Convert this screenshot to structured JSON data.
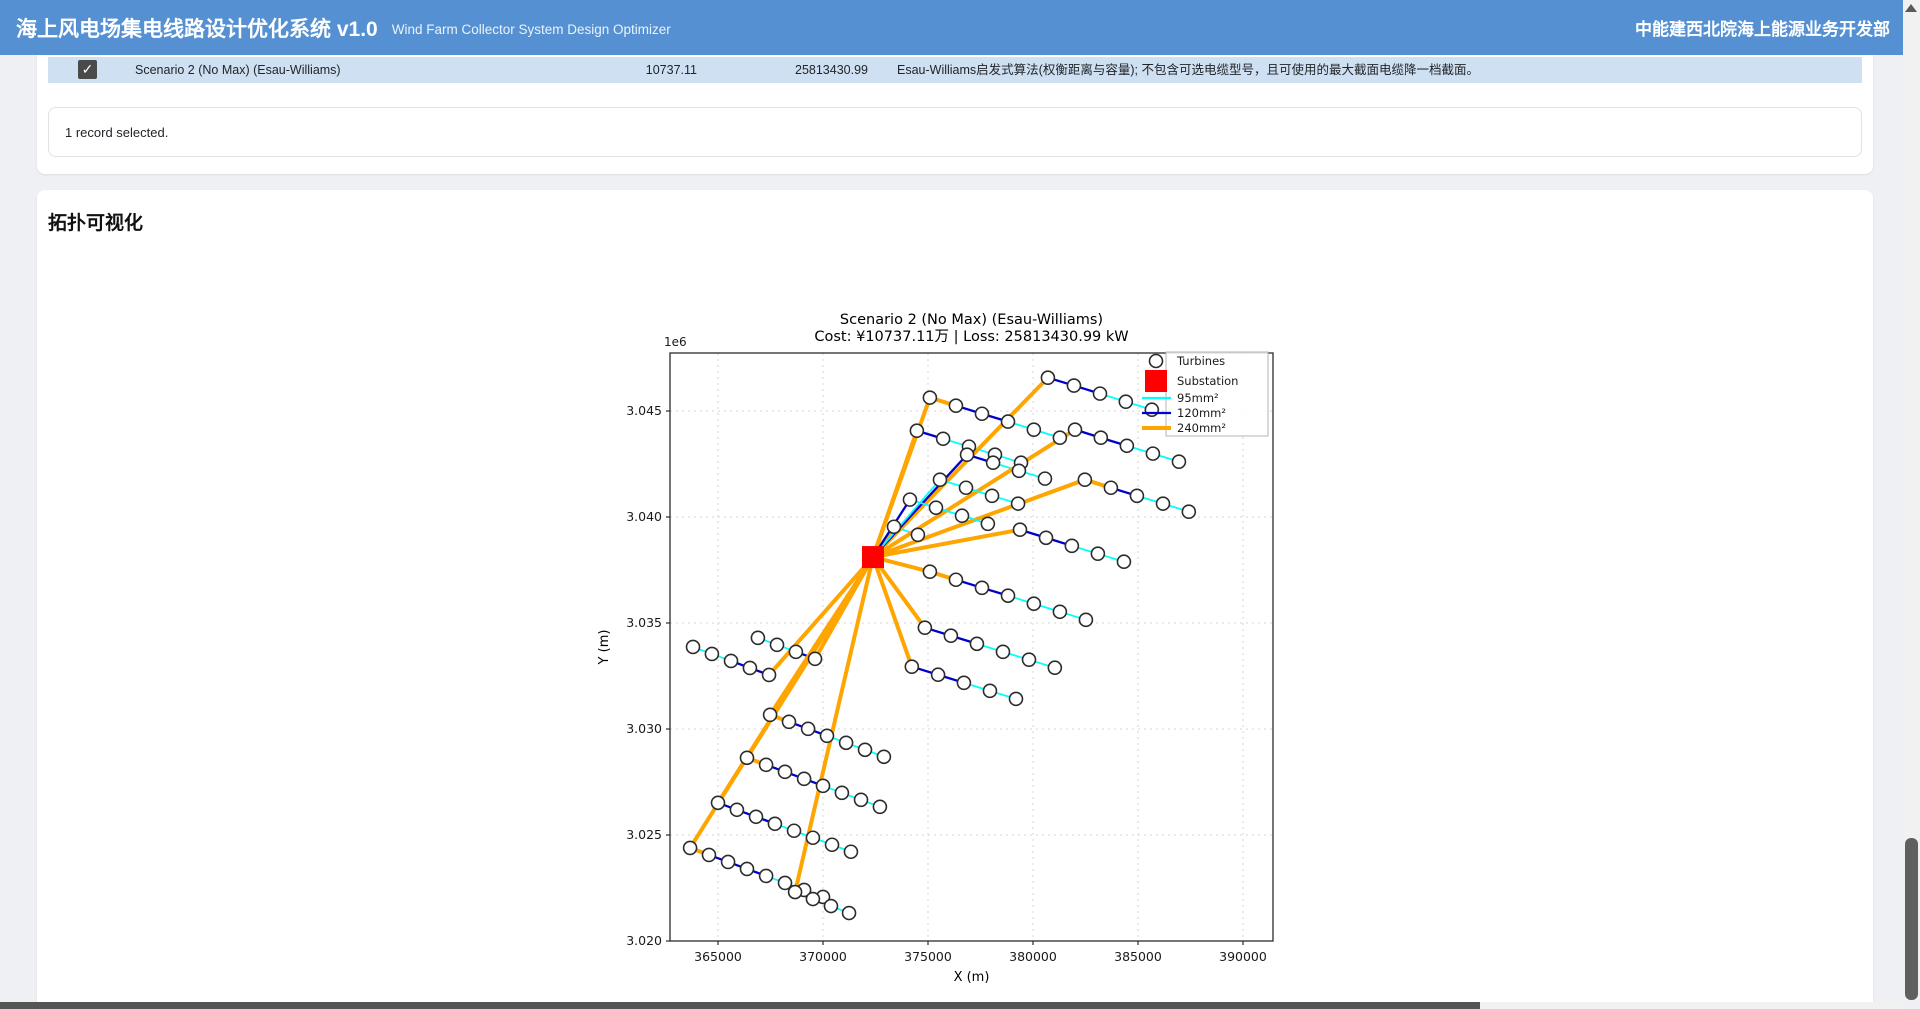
{
  "header": {
    "title": "海上风电场集电线路设计优化系统 v1.0",
    "subtitle": "Wind Farm Collector System Design Optimizer",
    "department": "中能建西北院海上能源业务开发部",
    "bg_color": "#5591d2"
  },
  "results": {
    "row": {
      "selected": true,
      "name": "Scenario 2 (No Max) (Esau-Williams)",
      "cost": "10737.11",
      "loss": "25813430.99",
      "description": "Esau-Williams启发式算法(权衡距离与容量); 不包含可选电缆型号，且可使用的最大截面电缆降一档截面。",
      "checkbox_glyph": "✓"
    },
    "status": "1 record selected."
  },
  "section": {
    "title": "拓扑可视化"
  },
  "chart_data": {
    "type": "scatter",
    "title": "Scenario 2 (No Max) (Esau-Williams)",
    "subtitle": "Cost: ¥10737.11万 | Loss: 25813430.99 kW",
    "xlabel": "X (m)",
    "ylabel": "Y (m)",
    "y_offset_label": "1e6",
    "xlim": [
      362714,
      391429
    ],
    "ylim": [
      3020000,
      3047736
    ],
    "x_ticks": [
      365000,
      370000,
      375000,
      380000,
      385000,
      390000
    ],
    "y_ticks": [
      3020000,
      3025000,
      3030000,
      3035000,
      3040000,
      3045000
    ],
    "y_tick_labels": [
      "3.020",
      "3.025",
      "3.030",
      "3.035",
      "3.040",
      "3.045"
    ],
    "grid": true,
    "legend": {
      "position": "upper right",
      "entries": [
        {
          "label": "Turbines",
          "type": "circle",
          "color": "#2b2b2b"
        },
        {
          "label": "Substation",
          "type": "square",
          "color": "#ff0000"
        },
        {
          "label": "95mm²",
          "type": "line",
          "color": "#00ffff"
        },
        {
          "label": "120mm²",
          "type": "line",
          "color": "#0000cd"
        },
        {
          "label": "240mm²",
          "type": "line",
          "color": "#ffa500"
        }
      ]
    },
    "substation": {
      "x": 372380,
      "y": 3038110
    },
    "cable_colors": {
      "95": "#00ffff",
      "120": "#0000cd",
      "240": "#ffa500"
    },
    "cable_widths": {
      "95": 1.8,
      "120": 2.3,
      "240": 4
    },
    "strings": [
      {
        "cables": [
          "240",
          "95"
        ],
        "points": [
          [
            373380,
            3039540
          ],
          [
            374520,
            3039160
          ]
        ]
      },
      {
        "cables": [
          "240",
          "120",
          "95",
          "95",
          "95"
        ],
        "points": [
          [
            374470,
            3044070
          ],
          [
            375720,
            3043690
          ],
          [
            376950,
            3043320
          ],
          [
            378190,
            3042940
          ],
          [
            379430,
            3042560
          ]
        ]
      },
      {
        "cables": [
          "240",
          "240",
          "120",
          "120",
          "95",
          "95"
        ],
        "points": [
          [
            375090,
            3045630
          ],
          [
            376330,
            3045250
          ],
          [
            377570,
            3044870
          ],
          [
            378810,
            3044500
          ],
          [
            380040,
            3044120
          ],
          [
            381280,
            3043740
          ]
        ]
      },
      {
        "cables": [
          "240",
          "120",
          "120",
          "95",
          "95"
        ],
        "points": [
          [
            380710,
            3046570
          ],
          [
            381950,
            3046200
          ],
          [
            383190,
            3045820
          ],
          [
            384420,
            3045440
          ],
          [
            385660,
            3045060
          ]
        ]
      },
      {
        "cables": [
          "120",
          "120",
          "95",
          "95"
        ],
        "points": [
          [
            376860,
            3042940
          ],
          [
            378100,
            3042560
          ],
          [
            379330,
            3042180
          ],
          [
            380570,
            3041810
          ]
        ]
      },
      {
        "cables": [
          "240",
          "120",
          "120",
          "95",
          "95"
        ],
        "points": [
          [
            382000,
            3044120
          ],
          [
            383230,
            3043740
          ],
          [
            384470,
            3043360
          ],
          [
            385710,
            3042990
          ],
          [
            386950,
            3042610
          ]
        ]
      },
      {
        "cables": [
          "95",
          "95",
          "95",
          "95"
        ],
        "points": [
          [
            375570,
            3041760
          ],
          [
            376810,
            3041380
          ],
          [
            378050,
            3041000
          ],
          [
            379290,
            3040630
          ]
        ]
      },
      {
        "cables": [
          "240",
          "240",
          "120",
          "95",
          "95"
        ],
        "points": [
          [
            382470,
            3041760
          ],
          [
            383710,
            3041380
          ],
          [
            384950,
            3041000
          ],
          [
            386190,
            3040630
          ],
          [
            387420,
            3040250
          ]
        ]
      },
      {
        "cables": [
          "120",
          "95",
          "95",
          "95"
        ],
        "points": [
          [
            374140,
            3040820
          ],
          [
            375380,
            3040440
          ],
          [
            376620,
            3040060
          ],
          [
            377850,
            3039680
          ]
        ]
      },
      {
        "cables": [
          "240",
          "120",
          "120",
          "95",
          "95"
        ],
        "points": [
          [
            379380,
            3039400
          ],
          [
            380620,
            3039020
          ],
          [
            381850,
            3038640
          ],
          [
            383090,
            3038270
          ],
          [
            384330,
            3037890
          ]
        ]
      },
      {
        "cables": [
          "240",
          "240",
          "120",
          "120",
          "95",
          "95",
          "95"
        ],
        "points": [
          [
            375090,
            3037420
          ],
          [
            376330,
            3037040
          ],
          [
            377570,
            3036660
          ],
          [
            378810,
            3036290
          ],
          [
            380040,
            3035910
          ],
          [
            381280,
            3035530
          ],
          [
            382520,
            3035150
          ]
        ]
      },
      {
        "cables": [
          "240",
          "120",
          "120",
          "95",
          "95",
          "95"
        ],
        "points": [
          [
            374850,
            3034780
          ],
          [
            376090,
            3034400
          ],
          [
            377330,
            3034020
          ],
          [
            378570,
            3033640
          ],
          [
            379810,
            3033270
          ],
          [
            381040,
            3032890
          ]
        ]
      },
      {
        "cables": [
          "240",
          "120",
          "120",
          "95",
          "95"
        ],
        "points": [
          [
            374230,
            3032940
          ],
          [
            375480,
            3032560
          ],
          [
            376710,
            3032180
          ],
          [
            377950,
            3031800
          ],
          [
            379190,
            3031420
          ]
        ]
      },
      {
        "cables": [
          "240",
          "120",
          "95",
          "95"
        ],
        "points": [
          [
            369620,
            3033310
          ],
          [
            368710,
            3033640
          ],
          [
            367810,
            3033970
          ],
          [
            366900,
            3034300
          ]
        ]
      },
      {
        "cables": [
          "240",
          "120",
          "120",
          "95",
          "95"
        ],
        "points": [
          [
            367430,
            3032550
          ],
          [
            366520,
            3032880
          ],
          [
            365620,
            3033210
          ],
          [
            364710,
            3033540
          ],
          [
            363810,
            3033870
          ]
        ]
      },
      {
        "cables": [
          "240",
          "240",
          "120",
          "120",
          "95",
          "95",
          "95"
        ],
        "points": [
          [
            367480,
            3030670
          ],
          [
            368380,
            3030340
          ],
          [
            369290,
            3030010
          ],
          [
            370190,
            3029680
          ],
          [
            371100,
            3029350
          ],
          [
            372000,
            3029020
          ],
          [
            372900,
            3028690
          ]
        ]
      },
      {
        "cables": [
          "240",
          "240",
          "120",
          "120",
          "120",
          "95",
          "95",
          "95"
        ],
        "points": [
          [
            366380,
            3028640
          ],
          [
            367290,
            3028310
          ],
          [
            368190,
            3027980
          ],
          [
            369100,
            3027650
          ],
          [
            370000,
            3027320
          ],
          [
            370900,
            3026990
          ],
          [
            371810,
            3026660
          ],
          [
            372710,
            3026330
          ]
        ]
      },
      {
        "cables": [
          "240",
          "120",
          "120",
          "120",
          "95",
          "95",
          "95",
          "95"
        ],
        "points": [
          [
            365000,
            3026520
          ],
          [
            365900,
            3026190
          ],
          [
            366810,
            3025860
          ],
          [
            367710,
            3025530
          ],
          [
            368620,
            3025200
          ],
          [
            369520,
            3024870
          ],
          [
            370430,
            3024540
          ],
          [
            371330,
            3024210
          ]
        ]
      },
      {
        "cables": [
          "240",
          "240",
          "120",
          "120",
          "120",
          "95",
          "95",
          "95"
        ],
        "points": [
          [
            363670,
            3024390
          ],
          [
            364570,
            3024060
          ],
          [
            365480,
            3023730
          ],
          [
            366380,
            3023400
          ],
          [
            367290,
            3023070
          ],
          [
            368190,
            3022740
          ],
          [
            369100,
            3022410
          ],
          [
            370000,
            3022080
          ]
        ]
      },
      {
        "cables": [
          "240",
          "120",
          "95",
          "95"
        ],
        "points": [
          [
            368670,
            3022310
          ],
          [
            369520,
            3021980
          ],
          [
            370380,
            3021650
          ],
          [
            371240,
            3021320
          ]
        ]
      }
    ]
  }
}
